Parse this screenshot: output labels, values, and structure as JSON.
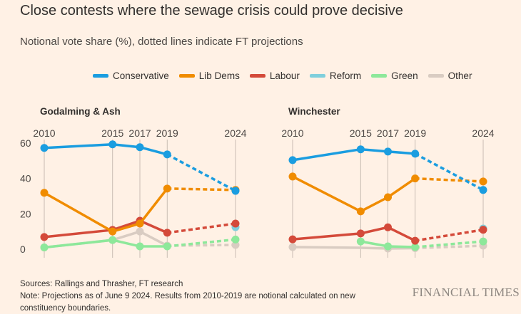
{
  "title": "Close contests where the sewage crisis could prove decisive",
  "subtitle": "Notional vote share (%), dotted lines indicate FT projections",
  "legend": [
    {
      "name": "Conservative",
      "color": "#1a9de0"
    },
    {
      "name": "Lib Dems",
      "color": "#f08c00"
    },
    {
      "name": "Labour",
      "color": "#d44a3a"
    },
    {
      "name": "Reform",
      "color": "#7fcfdc"
    },
    {
      "name": "Green",
      "color": "#8de89a"
    },
    {
      "name": "Other",
      "color": "#d9ccc2"
    }
  ],
  "chart_data": [
    {
      "type": "line",
      "title": "Godalming & Ash",
      "x": [
        2010,
        2015,
        2017,
        2019,
        2024
      ],
      "projected_from": 2019,
      "ylim": [
        0,
        60
      ],
      "yticks": [
        0,
        20,
        40,
        60
      ],
      "series": [
        {
          "name": "Conservative",
          "values": [
            57.3,
            59.3,
            57.7,
            53.6,
            33
          ]
        },
        {
          "name": "Lib Dems",
          "values": [
            31.9,
            10,
            14.5,
            34.3,
            33.5
          ]
        },
        {
          "name": "Labour",
          "values": [
            6.9,
            10.9,
            16.1,
            9.3,
            14.5
          ]
        },
        {
          "name": "Reform",
          "values": [
            null,
            null,
            null,
            null,
            12.5
          ]
        },
        {
          "name": "Green",
          "values": [
            1,
            5.2,
            1.6,
            1.6,
            5.5
          ]
        },
        {
          "name": "Other",
          "values": [
            1,
            5.2,
            10,
            2,
            2.4
          ]
        }
      ]
    },
    {
      "type": "line",
      "title": "Winchester",
      "x": [
        2010,
        2015,
        2017,
        2019,
        2024
      ],
      "projected_from": 2019,
      "ylim": [
        0,
        60
      ],
      "yticks": [],
      "series": [
        {
          "name": "Conservative",
          "values": [
            50.4,
            56.5,
            55.2,
            54,
            33.5
          ]
        },
        {
          "name": "Lib Dems",
          "values": [
            41.1,
            21.4,
            29.4,
            40,
            38.3
          ]
        },
        {
          "name": "Labour",
          "values": [
            5.6,
            8.9,
            12.4,
            4.8,
            11
          ]
        },
        {
          "name": "Reform",
          "values": [
            null,
            null,
            null,
            null,
            11.7
          ]
        },
        {
          "name": "Green",
          "values": [
            null,
            4.4,
            1.6,
            1.2,
            4.4
          ]
        },
        {
          "name": "Other",
          "values": [
            1.2,
            0.8,
            0.4,
            0.6,
            2
          ]
        }
      ]
    }
  ],
  "footer": {
    "sources": "Sources: Rallings and Thrasher, FT research",
    "note": "Note: Projections as of June 9 2024. Results from 2010-2019 are notional calculated on new",
    "note2": "constituency boundaries."
  },
  "logo": "FINANCIAL TIMES"
}
